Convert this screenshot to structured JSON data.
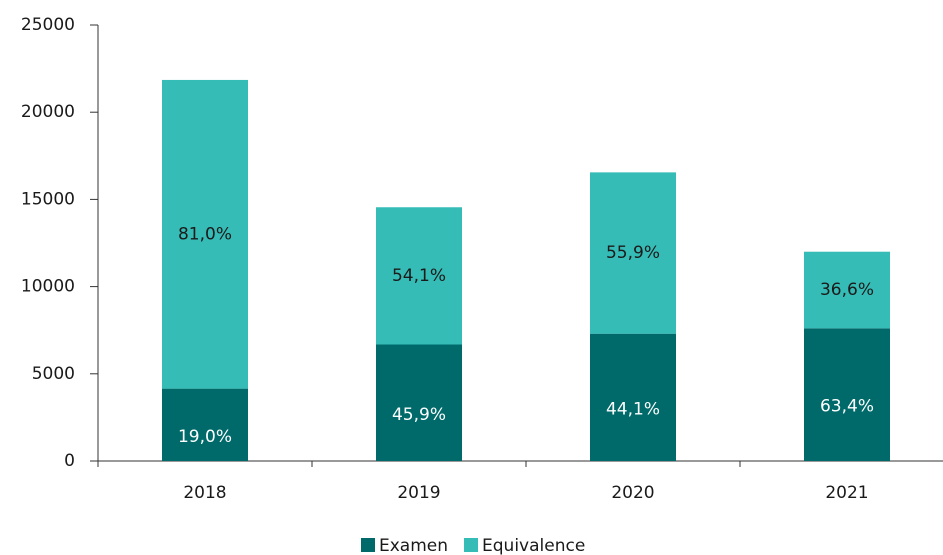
{
  "chart_data": {
    "type": "stacked_bar",
    "categories": [
      "2018",
      "2019",
      "2020",
      "2021"
    ],
    "series": [
      {
        "name": "Examen",
        "color": "#006a6a",
        "values": [
          4150,
          6680,
          7300,
          7610
        ],
        "share_labels": [
          "19,0%",
          "45,9%",
          "44,1%",
          "63,4%"
        ]
      },
      {
        "name": "Equivalence",
        "color": "#36bcb6",
        "values": [
          17700,
          7870,
          9250,
          4390
        ],
        "share_labels": [
          "81,0%",
          "54,1%",
          "55,9%",
          "36,6%"
        ]
      }
    ],
    "ylim": [
      0,
      25000
    ],
    "yticks": [
      0,
      5000,
      10000,
      15000,
      20000,
      25000
    ],
    "grid": false,
    "legend": "bottom"
  }
}
